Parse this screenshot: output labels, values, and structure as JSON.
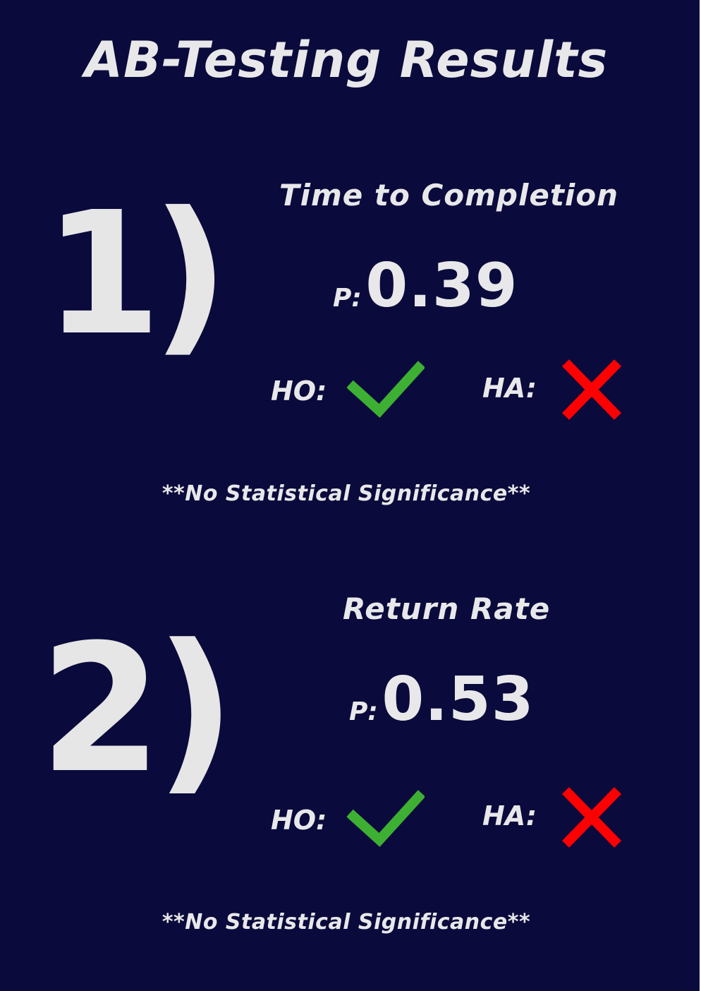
{
  "title": "AB-Testing Results",
  "tests": [
    {
      "number": "1)",
      "metric": "Time to Completion",
      "p_label": "P:",
      "p_value": "0.39",
      "h0_label": "HO:",
      "h0_icon": "check-icon",
      "ha_label": "HA:",
      "ha_icon": "cross-icon",
      "note": "**No Statistical Significance**"
    },
    {
      "number": "2)",
      "metric": "Return Rate",
      "p_label": "P:",
      "p_value": "0.53",
      "h0_label": "HO:",
      "h0_icon": "check-icon",
      "ha_label": "HA:",
      "ha_icon": "cross-icon",
      "note": "**No Statistical Significance**"
    }
  ],
  "colors": {
    "background": "#0a0a3c",
    "text": "#e8e8ea",
    "check": "#3db033",
    "cross": "#ff0000"
  }
}
